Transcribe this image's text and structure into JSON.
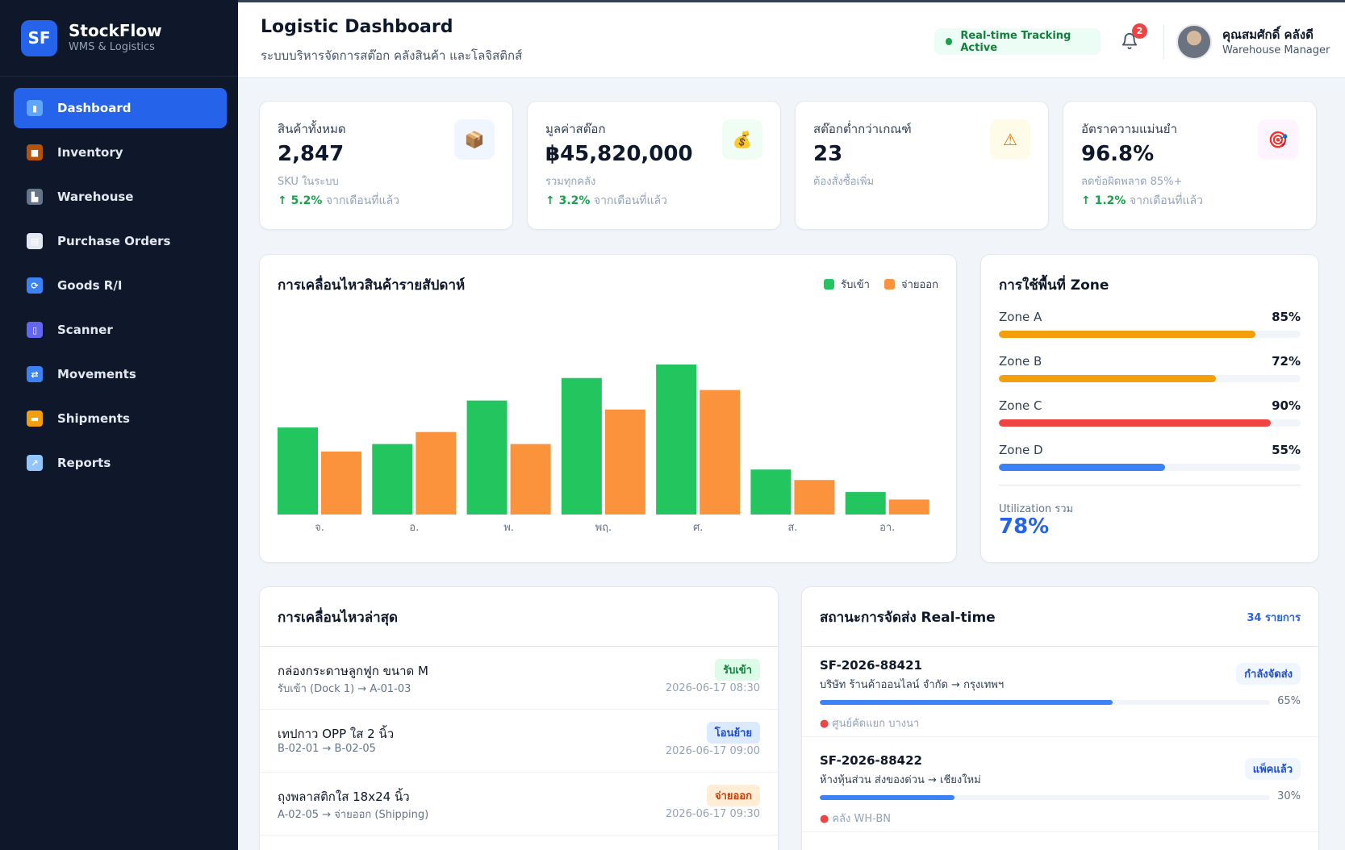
{
  "brand": {
    "logo": "SF",
    "name": "StockFlow",
    "subtitle": "WMS & Logistics"
  },
  "nav": [
    {
      "label": "Dashboard",
      "icon": "bar-chart-icon",
      "color": "#60a5fa",
      "glyph": "▮",
      "active": true
    },
    {
      "label": "Inventory",
      "icon": "package-icon",
      "color": "#b45309",
      "glyph": "■",
      "active": false
    },
    {
      "label": "Warehouse",
      "icon": "factory-icon",
      "color": "#64748b",
      "glyph": "▙",
      "active": false
    },
    {
      "label": "Purchase Orders",
      "icon": "clipboard-icon",
      "color": "#e2e8f0",
      "glyph": "▤",
      "active": false
    },
    {
      "label": "Goods R/I",
      "icon": "refresh-icon",
      "color": "#3b82f6",
      "glyph": "⟳",
      "active": false
    },
    {
      "label": "Scanner",
      "icon": "mobile-icon",
      "color": "#6366f1",
      "glyph": "▯",
      "active": false
    },
    {
      "label": "Movements",
      "icon": "shuffle-icon",
      "color": "#3b82f6",
      "glyph": "⇄",
      "active": false
    },
    {
      "label": "Shipments",
      "icon": "truck-icon",
      "color": "#f59e0b",
      "glyph": "▬",
      "active": false
    },
    {
      "label": "Reports",
      "icon": "trend-chart-icon",
      "color": "#93c5fd",
      "glyph": "↗",
      "active": false
    }
  ],
  "header": {
    "title": "Logistic Dashboard",
    "subtitle": "ระบบบริหารจัดการสต๊อก คลังสินค้า และโลจิสติกส์",
    "live_status": "Real-time Tracking Active",
    "notification_count": "2",
    "user_name": "คุณสมศักดิ์ คลังดี",
    "user_role": "Warehouse Manager"
  },
  "stats": [
    {
      "label": "สินค้าทั้งหมด",
      "value": "2,847",
      "sub": "SKU ในระบบ",
      "change": "↑ 5.2%",
      "change_note": " จากเดือนที่แล้ว",
      "icon": "package-icon",
      "glyph": "📦",
      "icon_bg": "#eff6ff"
    },
    {
      "label": "มูลค่าสต๊อก",
      "value": "฿45,820,000",
      "sub": "รวมทุกคลัง",
      "change": "↑ 3.2%",
      "change_note": " จากเดือนที่แล้ว",
      "icon": "money-bag-icon",
      "glyph": "💰",
      "icon_bg": "#f0fdf4"
    },
    {
      "label": "สต๊อกต่ำกว่าเกณฑ์",
      "value": "23",
      "sub": "ต้องสั่งซื้อเพิ่ม",
      "change": "",
      "change_note": "",
      "icon": "warning-icon",
      "glyph": "⚠",
      "icon_bg": "#fefce8"
    },
    {
      "label": "อัตราความแม่นยำ",
      "value": "96.8%",
      "sub": "ลดข้อผิดพลาด 85%+",
      "change": "↑ 1.2%",
      "change_note": " จากเดือนที่แล้ว",
      "icon": "target-icon",
      "glyph": "🎯",
      "icon_bg": "#fdf4ff"
    }
  ],
  "movement_chart": {
    "title": "การเคลื่อนไหวสินค้ารายสัปดาห์",
    "colors": {
      "in": "#22c55e",
      "out": "#fb923c"
    }
  },
  "chart_data": {
    "type": "bar",
    "categories": [
      "จ.",
      "อ.",
      "พ.",
      "พฤ.",
      "ศ.",
      "ส.",
      "อา."
    ],
    "series": [
      {
        "name": "รับเข้า",
        "values": [
          58,
          47,
          76,
          91,
          100,
          30,
          15
        ]
      },
      {
        "name": "จ่ายออก",
        "values": [
          42,
          55,
          47,
          70,
          83,
          23,
          10
        ]
      }
    ],
    "ylim": [
      0,
      100
    ],
    "grid": false,
    "legend": "top-right"
  },
  "zones": {
    "title": "การใช้พื้นที่ Zone",
    "items": [
      {
        "name": "Zone A",
        "pct_label": "85%",
        "pct": 85,
        "color": "#f59e0b"
      },
      {
        "name": "Zone B",
        "pct_label": "72%",
        "pct": 72,
        "color": "#f59e0b"
      },
      {
        "name": "Zone C",
        "pct_label": "90%",
        "pct": 90,
        "color": "#ef4444"
      },
      {
        "name": "Zone D",
        "pct_label": "55%",
        "pct": 55,
        "color": "#3b82f6"
      }
    ],
    "util_label": "Utilization รวม",
    "util_value": "78%"
  },
  "recent": {
    "title": "การเคลื่อนไหวล่าสุด",
    "items": [
      {
        "name": "กล่องกระดาษลูกฟูก ขนาด M",
        "detail": "รับเข้า (Dock 1) → A-01-03",
        "tag": "รับเข้า",
        "tag_bg": "#dcfce7",
        "tag_color": "#15803d",
        "time": "2026-06-17 08:30"
      },
      {
        "name": "เทปกาว OPP ใส 2 นิ้ว",
        "detail": "B-02-01 → B-02-05",
        "tag": "โอนย้าย",
        "tag_bg": "#dbeafe",
        "tag_color": "#1d4ed8",
        "time": "2026-06-17 09:00"
      },
      {
        "name": "ถุงพลาสติกใส 18x24 นิ้ว",
        "detail": "A-02-05 → จ่ายออก (Shipping)",
        "tag": "จ่ายออก",
        "tag_bg": "#ffedd5",
        "tag_color": "#c2410c",
        "time": "2026-06-17 09:30"
      }
    ]
  },
  "shipments": {
    "title": "สถานะการจัดส่ง Real-time",
    "count": "34 รายการ",
    "items": [
      {
        "id": "SF-2026-88421",
        "route": "บริษัท ร้านค้าออนไลน์ จำกัด → กรุงเทพฯ",
        "status": "กำลังจัดส่ง",
        "progress": 65,
        "progress_label": "65%",
        "location": "ศูนย์คัดแยก บางนา"
      },
      {
        "id": "SF-2026-88422",
        "route": "ห้างหุ้นส่วน ส่งของด่วน → เชียงใหม่",
        "status": "แพ็คแล้ว",
        "progress": 30,
        "progress_label": "30%",
        "location": "คลัง WH-BN"
      }
    ]
  }
}
